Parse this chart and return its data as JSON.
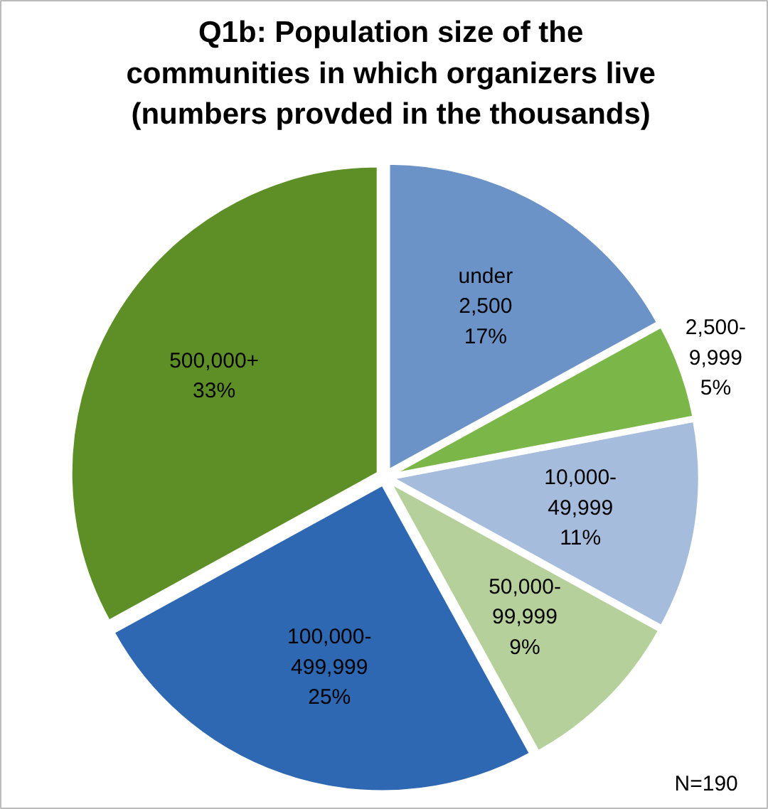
{
  "chart_data": {
    "type": "pie",
    "title": "Q1b: Population size of the\ncommunities in which organizers live\n(numbers provded in the thousands)",
    "categories": [
      "under\n2,500",
      "2,500-\n9,999",
      "10,000-\n49,999",
      "50,000-\n99,999",
      "100,000-\n499,999",
      "500,000+"
    ],
    "values": [
      17,
      5,
      11,
      9,
      25,
      33
    ],
    "colors": [
      "#6b93c7",
      "#7ab648",
      "#a6bcdd",
      "#b5d09b",
      "#2e67b2",
      "#5e8f27"
    ],
    "value_labels": [
      "17%",
      "5%",
      "11%",
      "9%",
      "25%",
      "33%"
    ],
    "annotations": [
      "N=190"
    ]
  }
}
